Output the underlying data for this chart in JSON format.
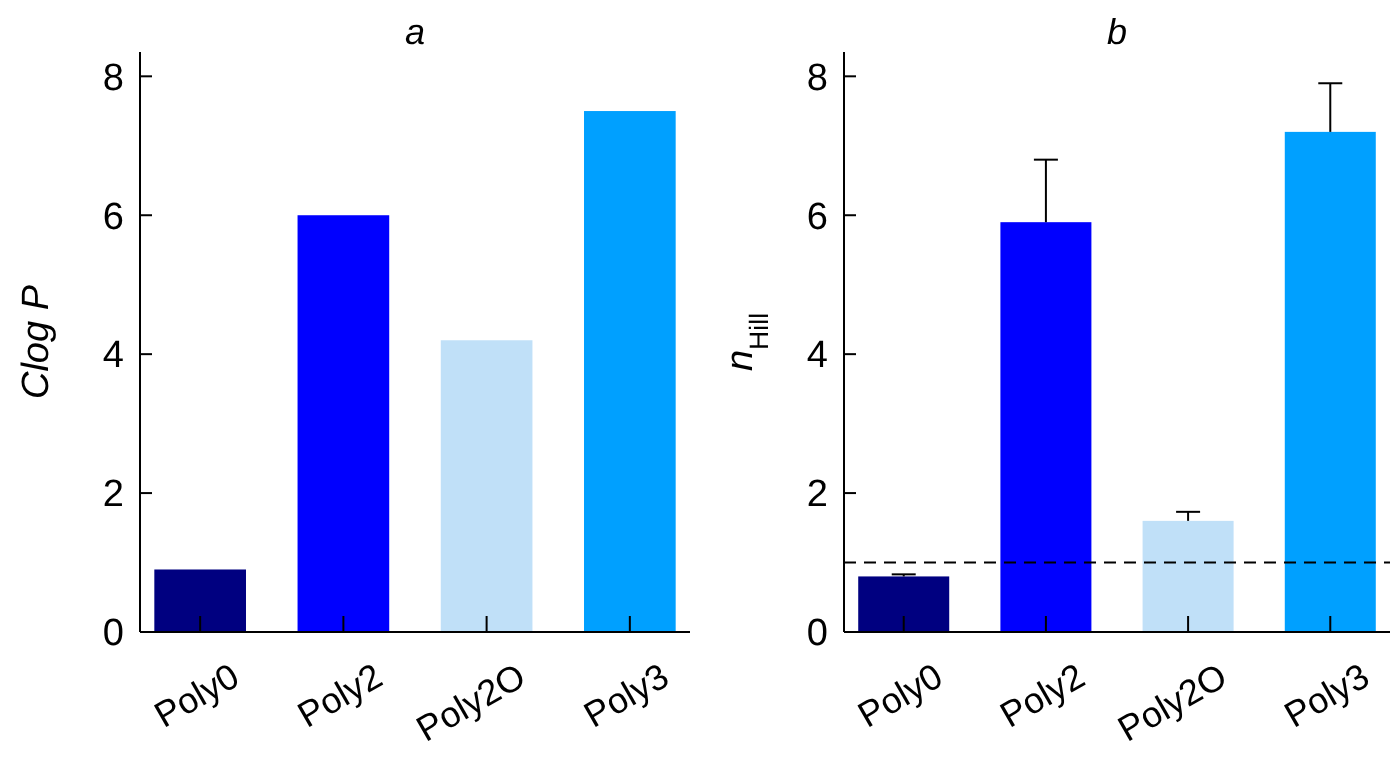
{
  "chart_data": [
    {
      "type": "bar",
      "title": "a",
      "ylabel": "Clog P",
      "categories": [
        "Poly0",
        "Poly2",
        "Poly2O",
        "Poly3"
      ],
      "values": [
        0.9,
        6.0,
        4.2,
        7.5
      ],
      "colors": [
        "#000080",
        "#0000ff",
        "#c0e0f8",
        "#00a0ff"
      ],
      "ylim": [
        0,
        8.35
      ],
      "yticks": [
        0,
        2,
        4,
        6,
        8
      ],
      "grid": false
    },
    {
      "type": "bar",
      "title": "b",
      "ylabel": "n$_{Hill}$",
      "categories": [
        "Poly0",
        "Poly2",
        "Poly2O",
        "Poly3"
      ],
      "values": [
        0.8,
        5.9,
        1.6,
        7.2
      ],
      "colors": [
        "#000080",
        "#0000ff",
        "#c0e0f8",
        "#00a0ff"
      ],
      "errors": [
        [
          0.8,
          0.83
        ],
        [
          5.9,
          6.8
        ],
        [
          1.6,
          1.73
        ],
        [
          7.2,
          7.9
        ]
      ],
      "ylim": [
        0,
        8.35
      ],
      "yticks": [
        0,
        2,
        4,
        6,
        8
      ],
      "grid": false,
      "ref_lines": [
        {
          "axis": "y",
          "value": 1,
          "color": "#000000",
          "line_style": "dashed"
        }
      ]
    }
  ]
}
